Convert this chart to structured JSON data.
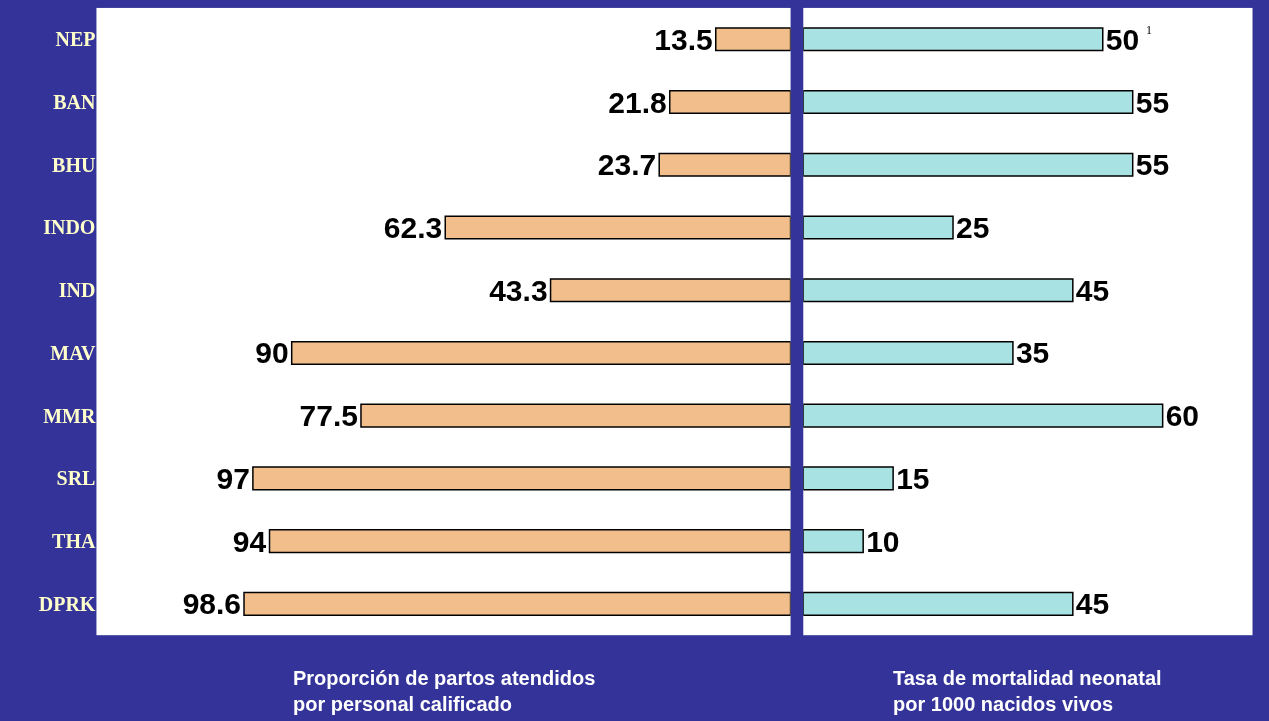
{
  "chart_data": [
    {
      "type": "bar",
      "orientation": "horizontal",
      "categories": [
        "NEP",
        "BAN",
        "BHU",
        "INDO",
        "IND",
        "MAV",
        "MMR",
        "SRL",
        "THA",
        "DPRK"
      ],
      "values": [
        13.5,
        21.8,
        23.7,
        62.3,
        43.3,
        90,
        77.5,
        97,
        94,
        98.6
      ],
      "color": "#f2bf8c",
      "data_labels": true,
      "xlabel": "Proporción de partos atendidos\npor personal calificado",
      "tick_labels": "y"
    },
    {
      "type": "bar",
      "orientation": "horizontal",
      "categories": [
        "NEP",
        "BAN",
        "BHU",
        "INDO",
        "IND",
        "MAV",
        "MMR",
        "SRL",
        "THA",
        "DPRK"
      ],
      "values": [
        50,
        55,
        55,
        25,
        45,
        35,
        60,
        15,
        10,
        45
      ],
      "color": "#a8e2e2",
      "data_labels": true,
      "xlabel": "Tasa de mortalidad neonatal\npor 1000 nacidos vivos",
      "tick_labels": false,
      "annotations": [
        "1"
      ]
    }
  ]
}
